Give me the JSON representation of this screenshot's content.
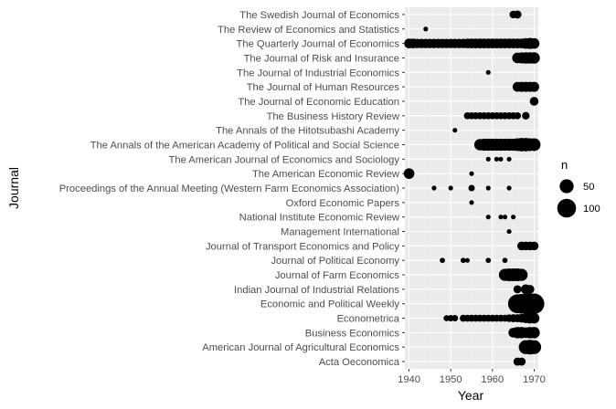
{
  "chart_data": {
    "type": "scatter",
    "xlabel": "Year",
    "ylabel": "Journal",
    "xlim": [
      1939,
      1971
    ],
    "x_ticks": [
      1940,
      1950,
      1960,
      1970
    ],
    "grid": true,
    "legend": {
      "title": "n",
      "placement": "right",
      "entries": [
        {
          "label": "50",
          "value": 50
        },
        {
          "label": "100",
          "value": 100
        }
      ]
    },
    "journals": [
      "The Swedish Journal of Economics",
      "The Review of Economics and Statistics",
      "The Quarterly Journal of Economics",
      "The Journal of Risk and Insurance",
      "The Journal of Industrial Economics",
      "The Journal of Human Resources",
      "The Journal of Economic Education",
      "The Business History Review",
      "The Annals of the Hitotsubashi Academy",
      "The Annals of the American Academy of Political and Social Science",
      "The American Journal of Economics and Sociology",
      "The American Economic Review",
      "Proceedings of the Annual Meeting (Western Farm Economics Association)",
      "Oxford Economic Papers",
      "National Institute Economic Review",
      "Management International",
      "Journal of Transport Economics and Policy",
      "Journal of Political Economy",
      "Journal of Farm Economics",
      "Indian Journal of Industrial Relations",
      "Economic and Political Weekly",
      "Econometrica",
      "Business Economics",
      "American Journal of Agricultural Economics",
      "Acta Oeconomica"
    ],
    "points": {
      "The Swedish Journal of Economics": [
        [
          1965,
          10
        ],
        [
          1966,
          12
        ]
      ],
      "The Review of Economics and Statistics": [
        [
          1944,
          2
        ]
      ],
      "The Quarterly Journal of Economics": [
        [
          1940,
          20
        ],
        [
          1941,
          20
        ],
        [
          1942,
          18
        ],
        [
          1943,
          18
        ],
        [
          1944,
          18
        ],
        [
          1945,
          18
        ],
        [
          1946,
          18
        ],
        [
          1947,
          18
        ],
        [
          1948,
          18
        ],
        [
          1949,
          18
        ],
        [
          1950,
          18
        ],
        [
          1951,
          18
        ],
        [
          1952,
          18
        ],
        [
          1953,
          18
        ],
        [
          1954,
          20
        ],
        [
          1955,
          20
        ],
        [
          1956,
          20
        ],
        [
          1957,
          20
        ],
        [
          1958,
          20
        ],
        [
          1959,
          20
        ],
        [
          1960,
          20
        ],
        [
          1961,
          20
        ],
        [
          1962,
          20
        ],
        [
          1963,
          20
        ],
        [
          1964,
          20
        ],
        [
          1965,
          20
        ],
        [
          1966,
          20
        ],
        [
          1967,
          20
        ],
        [
          1968,
          25
        ],
        [
          1969,
          28
        ],
        [
          1970,
          25
        ]
      ],
      "The Journal of Risk and Insurance": [
        [
          1966,
          25
        ],
        [
          1967,
          28
        ],
        [
          1968,
          30
        ],
        [
          1969,
          30
        ],
        [
          1970,
          30
        ]
      ],
      "The Journal of Industrial Economics": [
        [
          1959,
          2
        ]
      ],
      "The Journal of Human Resources": [
        [
          1966,
          20
        ],
        [
          1967,
          22
        ],
        [
          1968,
          22
        ],
        [
          1969,
          22
        ],
        [
          1970,
          22
        ]
      ],
      "The Journal of Economic Education": [
        [
          1970,
          15
        ]
      ],
      "The Business History Review": [
        [
          1954,
          8
        ],
        [
          1955,
          8
        ],
        [
          1956,
          8
        ],
        [
          1957,
          8
        ],
        [
          1958,
          8
        ],
        [
          1959,
          8
        ],
        [
          1960,
          8
        ],
        [
          1961,
          8
        ],
        [
          1962,
          8
        ],
        [
          1963,
          8
        ],
        [
          1964,
          8
        ],
        [
          1965,
          8
        ],
        [
          1966,
          8
        ],
        [
          1968,
          10
        ]
      ],
      "The Annals of the Hitotsubashi Academy": [
        [
          1951,
          2
        ]
      ],
      "The Annals of the American Academy of Political and Social Science": [
        [
          1957,
          30
        ],
        [
          1958,
          35
        ],
        [
          1959,
          35
        ],
        [
          1960,
          35
        ],
        [
          1961,
          35
        ],
        [
          1962,
          35
        ],
        [
          1963,
          35
        ],
        [
          1964,
          35
        ],
        [
          1965,
          35
        ],
        [
          1966,
          40
        ],
        [
          1967,
          45
        ],
        [
          1968,
          45
        ],
        [
          1969,
          40
        ],
        [
          1970,
          40
        ]
      ],
      "The American Journal of Economics and Sociology": [
        [
          1959,
          2
        ],
        [
          1961,
          2
        ],
        [
          1962,
          2
        ],
        [
          1964,
          2
        ]
      ],
      "The American Economic Review": [
        [
          1940,
          25
        ],
        [
          1955,
          2
        ]
      ],
      "Proceedings of the Annual Meeting (Western Farm Economics Association)": [
        [
          1946,
          2
        ],
        [
          1950,
          2
        ],
        [
          1955,
          6
        ],
        [
          1959,
          2
        ],
        [
          1964,
          2
        ]
      ],
      "Oxford Economic Papers": [
        [
          1955,
          2
        ]
      ],
      "National Institute Economic Review": [
        [
          1959,
          2
        ],
        [
          1962,
          2
        ],
        [
          1963,
          2
        ],
        [
          1965,
          2
        ]
      ],
      "Management International": [
        [
          1964,
          2
        ]
      ],
      "Journal of Transport Economics and Policy": [
        [
          1967,
          15
        ],
        [
          1968,
          15
        ],
        [
          1969,
          15
        ],
        [
          1970,
          15
        ]
      ],
      "Journal of Political Economy": [
        [
          1948,
          3
        ],
        [
          1953,
          3
        ],
        [
          1954,
          2
        ],
        [
          1959,
          3
        ],
        [
          1963,
          3
        ]
      ],
      "Journal of Farm Economics": [
        [
          1963,
          35
        ],
        [
          1964,
          40
        ],
        [
          1965,
          40
        ],
        [
          1966,
          40
        ],
        [
          1967,
          35
        ]
      ],
      "Indian Journal of Industrial Relations": [
        [
          1966,
          12
        ],
        [
          1968,
          20
        ],
        [
          1969,
          15
        ]
      ],
      "Economic and Political Weekly": [
        [
          1966,
          100
        ],
        [
          1967,
          110
        ],
        [
          1968,
          120
        ],
        [
          1969,
          120
        ],
        [
          1970,
          120
        ]
      ],
      "Econometrica": [
        [
          1949,
          5
        ],
        [
          1950,
          6
        ],
        [
          1951,
          6
        ],
        [
          1953,
          8
        ],
        [
          1954,
          8
        ],
        [
          1955,
          8
        ],
        [
          1956,
          8
        ],
        [
          1957,
          8
        ],
        [
          1958,
          8
        ],
        [
          1959,
          8
        ],
        [
          1960,
          8
        ],
        [
          1961,
          8
        ],
        [
          1962,
          8
        ],
        [
          1963,
          8
        ],
        [
          1964,
          10
        ],
        [
          1965,
          12
        ],
        [
          1966,
          12
        ],
        [
          1967,
          15
        ],
        [
          1968,
          20
        ],
        [
          1969,
          25
        ],
        [
          1970,
          25
        ]
      ],
      "Business Economics": [
        [
          1965,
          20
        ],
        [
          1966,
          30
        ],
        [
          1967,
          30
        ],
        [
          1968,
          25
        ],
        [
          1969,
          30
        ],
        [
          1970,
          30
        ]
      ],
      "American Journal of Agricultural Economics": [
        [
          1968,
          50
        ],
        [
          1969,
          55
        ],
        [
          1970,
          50
        ]
      ],
      "Acta Oeconomica": [
        [
          1966,
          12
        ],
        [
          1967,
          12
        ]
      ]
    }
  }
}
